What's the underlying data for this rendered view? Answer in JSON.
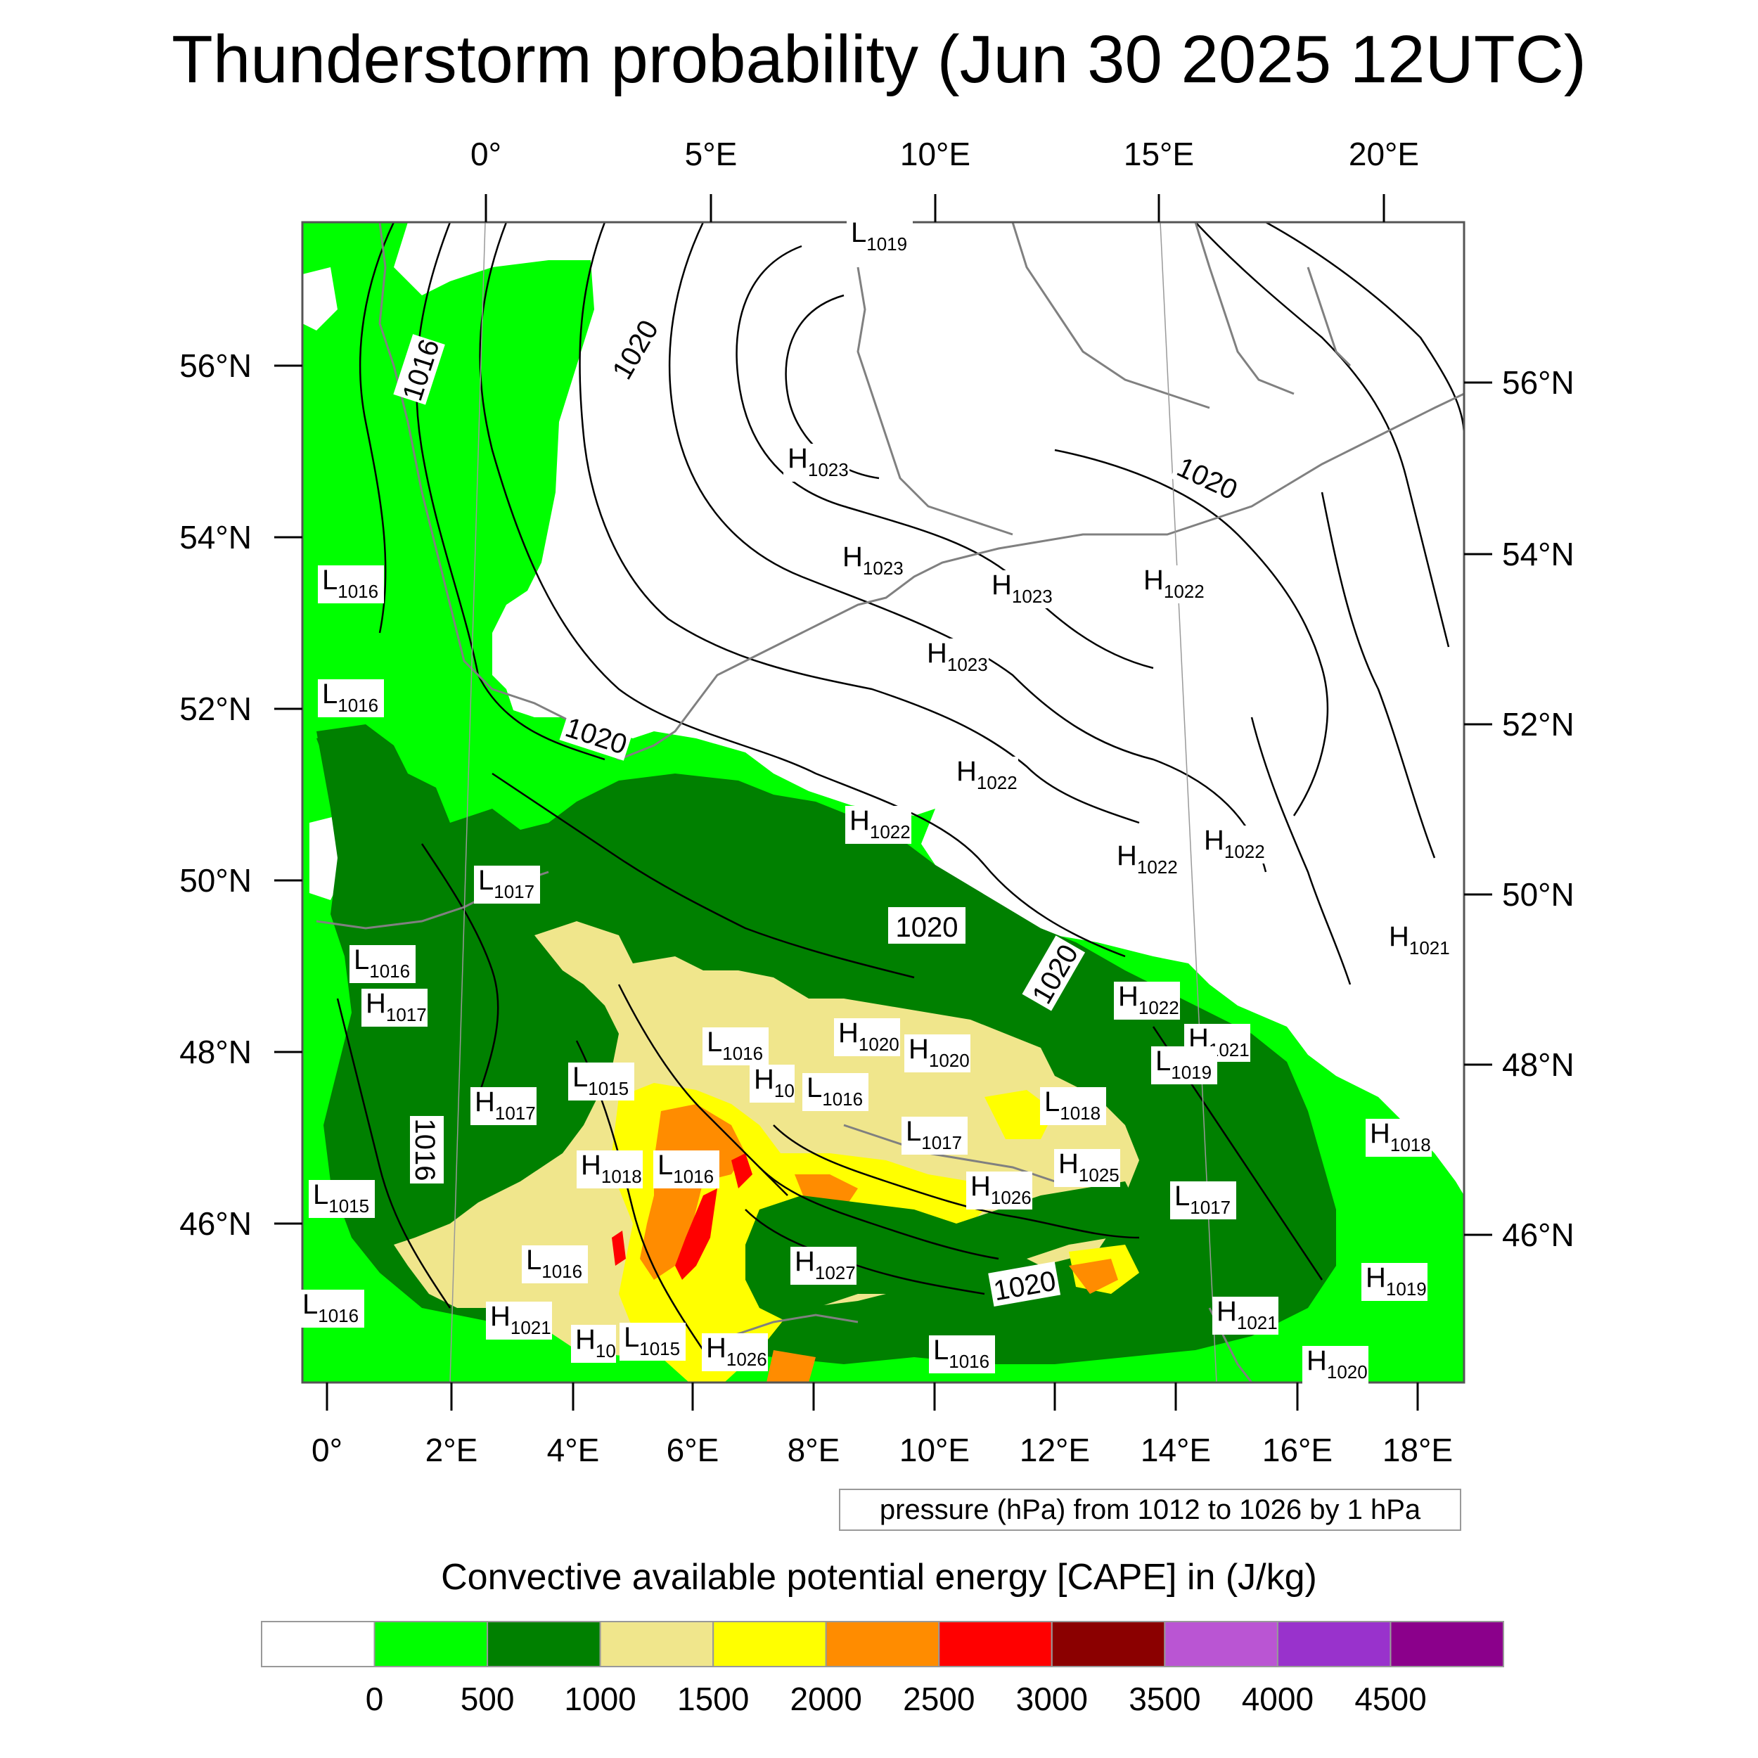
{
  "title": "Thunderstorm probability (Jun 30 2025 12UTC)",
  "top_axis": {
    "labels": [
      "0°",
      "5°E",
      "10°E",
      "15°E",
      "20°E"
    ]
  },
  "bottom_axis": {
    "labels": [
      "0°",
      "2°E",
      "4°E",
      "6°E",
      "8°E",
      "10°E",
      "12°E",
      "14°E",
      "16°E",
      "18°E"
    ]
  },
  "left_axis": {
    "labels": [
      "56°N",
      "54°N",
      "52°N",
      "50°N",
      "48°N",
      "46°N"
    ]
  },
  "right_axis": {
    "labels": [
      "56°N",
      "54°N",
      "52°N",
      "50°N",
      "48°N",
      "46°N"
    ]
  },
  "caption": "pressure (hPa) from 1012 to 1026 by 1 hPa",
  "colorbar": {
    "title": "Convective available potential energy [CAPE] in (J/kg)",
    "colors": [
      "#ffffff",
      "#00ff00",
      "#008000",
      "#f0e68c",
      "#ffff00",
      "#ff8c00",
      "#ff0000",
      "#8b0000",
      "#ba55d3",
      "#9932cc",
      "#8b008b"
    ],
    "tick_labels": [
      "0",
      "500",
      "1000",
      "1500",
      "2000",
      "2500",
      "3000",
      "3500",
      "4000",
      "4500"
    ]
  },
  "pressure_labels": [
    {
      "letter": "L",
      "value": "1019"
    },
    {
      "letter": "H",
      "value": "1023"
    },
    {
      "letter": "H",
      "value": "1023"
    },
    {
      "letter": "H",
      "value": "1023"
    },
    {
      "letter": "H",
      "value": "1023"
    },
    {
      "letter": "H",
      "value": "1022"
    },
    {
      "letter": "H",
      "value": "1022"
    },
    {
      "letter": "H",
      "value": "1022"
    },
    {
      "letter": "H",
      "value": "1022"
    },
    {
      "letter": "H",
      "value": "1022"
    },
    {
      "letter": "H",
      "value": "1021"
    },
    {
      "letter": "H",
      "value": "1022"
    },
    {
      "letter": "H",
      "value": "1021"
    },
    {
      "letter": "L",
      "value": "1019"
    },
    {
      "letter": "L",
      "value": "1016"
    },
    {
      "letter": "L",
      "value": "1016"
    },
    {
      "letter": "L",
      "value": "1017"
    },
    {
      "letter": "L",
      "value": "1016"
    },
    {
      "letter": "H",
      "value": "1017"
    },
    {
      "letter": "H",
      "value": "1017"
    },
    {
      "letter": "L",
      "value": "1015"
    },
    {
      "letter": "L",
      "value": "1016"
    },
    {
      "letter": "H",
      "value": "1020"
    },
    {
      "letter": "H",
      "value": "1020"
    },
    {
      "letter": "H",
      "value": "10"
    },
    {
      "letter": "L",
      "value": "1016"
    },
    {
      "letter": "L",
      "value": "1018"
    },
    {
      "letter": "L",
      "value": "1017"
    },
    {
      "letter": "H",
      "value": "1018"
    },
    {
      "letter": "L",
      "value": "1016"
    },
    {
      "letter": "H",
      "value": "1026"
    },
    {
      "letter": "H",
      "value": "1025"
    },
    {
      "letter": "L",
      "value": "1017"
    },
    {
      "letter": "H",
      "value": "1018"
    },
    {
      "letter": "L",
      "value": "1015"
    },
    {
      "letter": "L",
      "value": "1016"
    },
    {
      "letter": "H",
      "value": "1027"
    },
    {
      "letter": "H",
      "value": "1019"
    },
    {
      "letter": "L",
      "value": "1016"
    },
    {
      "letter": "H",
      "value": "1021"
    },
    {
      "letter": "H",
      "value": "10"
    },
    {
      "letter": "L",
      "value": "1015"
    },
    {
      "letter": "H",
      "value": "1026"
    },
    {
      "letter": "L",
      "value": "1016"
    },
    {
      "letter": "H",
      "value": "1021"
    },
    {
      "letter": "H",
      "value": "1020"
    }
  ],
  "contour_value_labels": [
    "1016",
    "1020",
    "1020",
    "1020",
    "1020",
    "1016",
    "1020",
    "1020"
  ]
}
